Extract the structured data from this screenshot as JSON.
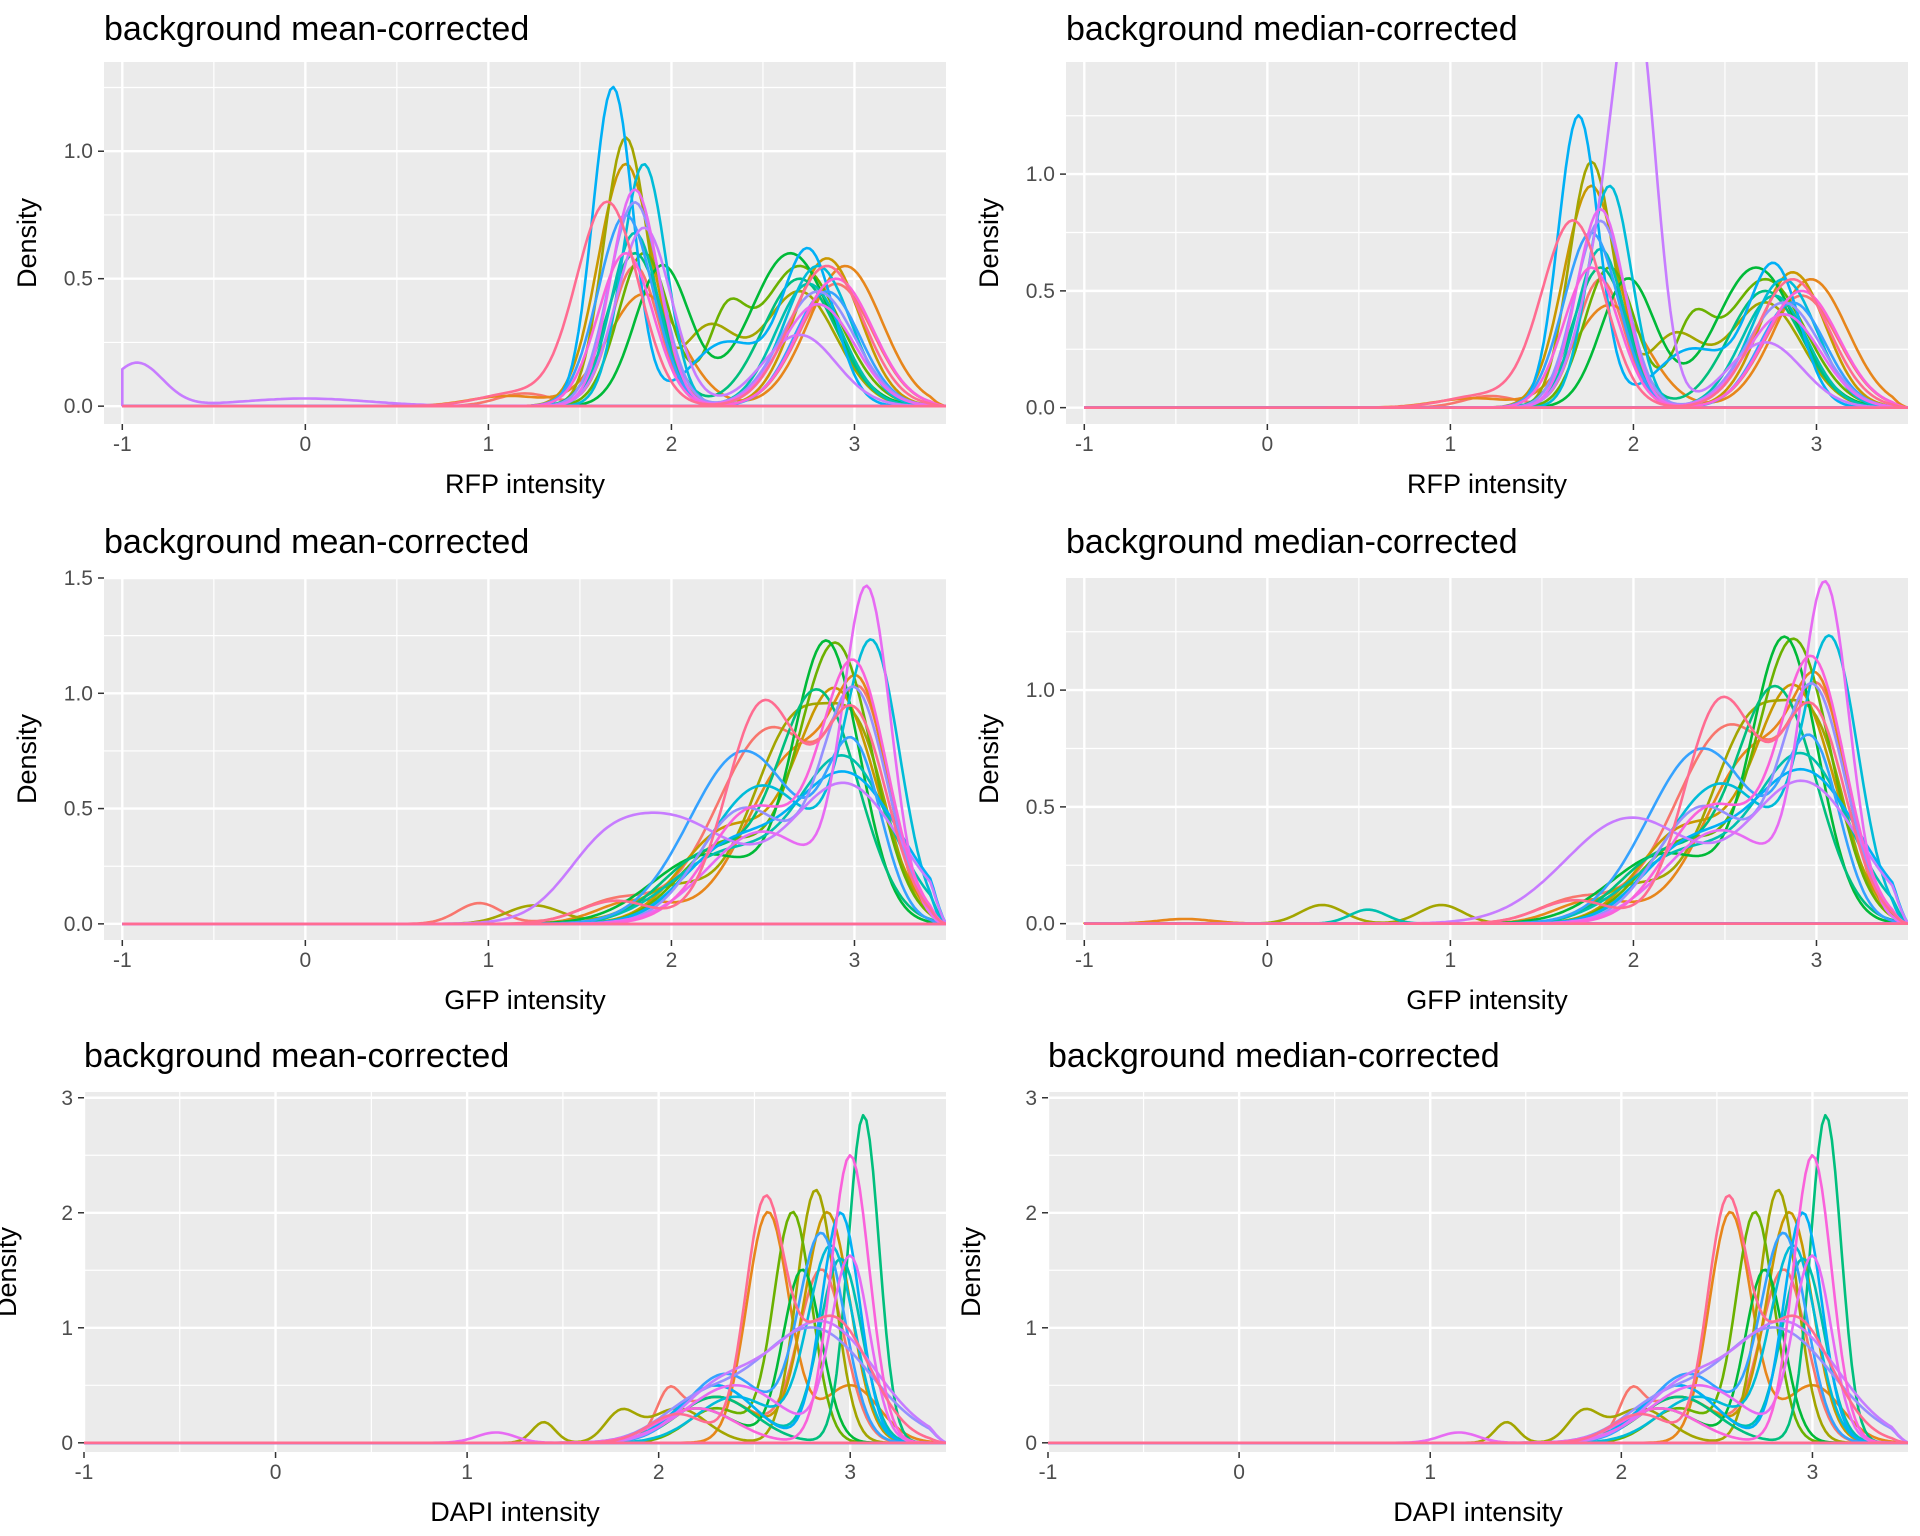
{
  "series_colors": [
    "#F8766D",
    "#E7861B",
    "#C99800",
    "#A3A500",
    "#6BB100",
    "#00BA38",
    "#00BF7D",
    "#00C0AF",
    "#00BCD8",
    "#00B0F6",
    "#35A2FF",
    "#9590FF",
    "#C77CFF",
    "#E76BF3",
    "#FA62DB",
    "#FF6C91"
  ],
  "chart_data": [
    {
      "type": "line",
      "subtype": "density",
      "title": "background mean-corrected",
      "xlabel": "RFP intensity",
      "ylabel": "Density",
      "xlim": [
        -1.1,
        3.5
      ],
      "ylim": [
        -0.07,
        1.35
      ],
      "xticks": [
        -1,
        0,
        1,
        2,
        3
      ],
      "yticks": [
        0,
        0.5,
        1
      ],
      "ytick_labels": [
        "0.0",
        "0.5",
        "1.0"
      ],
      "series_style": "rfp",
      "shift": 0,
      "extra_peaks": [
        {
          "series": 12,
          "center": -0.92,
          "height": 0.17,
          "width": 0.14
        },
        {
          "series": 12,
          "center": 0.0,
          "height": 0.03,
          "width": 0.35
        }
      ]
    },
    {
      "type": "line",
      "subtype": "density",
      "title": "background median-corrected",
      "xlabel": "RFP intensity",
      "ylabel": "Density",
      "xlim": [
        -1.1,
        3.5
      ],
      "ylim": [
        -0.07,
        1.48
      ],
      "xticks": [
        -1,
        0,
        1,
        2,
        3
      ],
      "yticks": [
        0,
        0.5,
        1
      ],
      "ytick_labels": [
        "0.0",
        "0.5",
        "1.0"
      ],
      "series_style": "rfp",
      "shift": 0.02,
      "extra_peaks": [
        {
          "series": 12,
          "center": 2.02,
          "height": 1.35,
          "width": 0.11
        }
      ]
    },
    {
      "type": "line",
      "subtype": "density",
      "title": "background mean-corrected",
      "xlabel": "GFP intensity",
      "ylabel": "Density",
      "xlim": [
        -1.1,
        3.5
      ],
      "ylim": [
        -0.07,
        1.5
      ],
      "xticks": [
        -1,
        0,
        1,
        2,
        3
      ],
      "yticks": [
        0,
        0.5,
        1,
        1.5
      ],
      "ytick_labels": [
        "0.0",
        "0.5",
        "1.0",
        "1.5"
      ],
      "series_style": "gfp",
      "shift": 0,
      "extra_peaks": [
        {
          "series": 0,
          "center": 0.95,
          "height": 0.09,
          "width": 0.12
        },
        {
          "series": 3,
          "center": 1.25,
          "height": 0.08,
          "width": 0.15
        },
        {
          "series": 12,
          "center": 1.6,
          "height": 0.15,
          "width": 0.2
        }
      ]
    },
    {
      "type": "line",
      "subtype": "density",
      "title": "background median-corrected",
      "xlabel": "GFP intensity",
      "ylabel": "Density",
      "xlim": [
        -1.1,
        3.5
      ],
      "ylim": [
        -0.07,
        1.48
      ],
      "xticks": [
        -1,
        0,
        1,
        2,
        3
      ],
      "yticks": [
        0,
        0.5,
        1
      ],
      "ytick_labels": [
        "0.0",
        "0.5",
        "1.0"
      ],
      "series_style": "gfp",
      "shift": -0.02,
      "extra_peaks": [
        {
          "series": 1,
          "center": -0.45,
          "height": 0.02,
          "width": 0.15
        },
        {
          "series": 3,
          "center": 0.3,
          "height": 0.08,
          "width": 0.12
        },
        {
          "series": 7,
          "center": 0.55,
          "height": 0.06,
          "width": 0.1
        },
        {
          "series": 3,
          "center": 0.95,
          "height": 0.08,
          "width": 0.12
        }
      ]
    },
    {
      "type": "line",
      "subtype": "density",
      "title": "background mean-corrected",
      "xlabel": "DAPI intensity",
      "ylabel": "Density",
      "xlim": [
        -1.0,
        3.5
      ],
      "ylim": [
        -0.08,
        3.05
      ],
      "xticks": [
        -1,
        0,
        1,
        2,
        3
      ],
      "yticks": [
        0,
        1,
        2,
        3
      ],
      "ytick_labels": [
        "0",
        "1",
        "2",
        "3"
      ],
      "series_style": "dapi",
      "shift": 0,
      "extra_peaks": [
        {
          "series": 13,
          "center": 1.15,
          "height": 0.09,
          "width": 0.1
        },
        {
          "series": 3,
          "center": 1.4,
          "height": 0.18,
          "width": 0.06
        },
        {
          "series": 3,
          "center": 1.8,
          "height": 0.25,
          "width": 0.08
        },
        {
          "series": 0,
          "center": 2.05,
          "height": 0.3,
          "width": 0.06
        }
      ]
    },
    {
      "type": "line",
      "subtype": "density",
      "title": "background median-corrected",
      "xlabel": "DAPI intensity",
      "ylabel": "Density",
      "xlim": [
        -1.0,
        3.5
      ],
      "ylim": [
        -0.08,
        3.05
      ],
      "xticks": [
        -1,
        0,
        1,
        2,
        3
      ],
      "yticks": [
        0,
        1,
        2,
        3
      ],
      "ytick_labels": [
        "0",
        "1",
        "2",
        "3"
      ],
      "series_style": "dapi",
      "shift": 0,
      "extra_peaks": [
        {
          "series": 13,
          "center": 1.15,
          "height": 0.09,
          "width": 0.1
        },
        {
          "series": 3,
          "center": 1.4,
          "height": 0.18,
          "width": 0.06
        },
        {
          "series": 3,
          "center": 1.8,
          "height": 0.25,
          "width": 0.08
        },
        {
          "series": 0,
          "center": 2.05,
          "height": 0.3,
          "width": 0.06
        }
      ]
    }
  ]
}
